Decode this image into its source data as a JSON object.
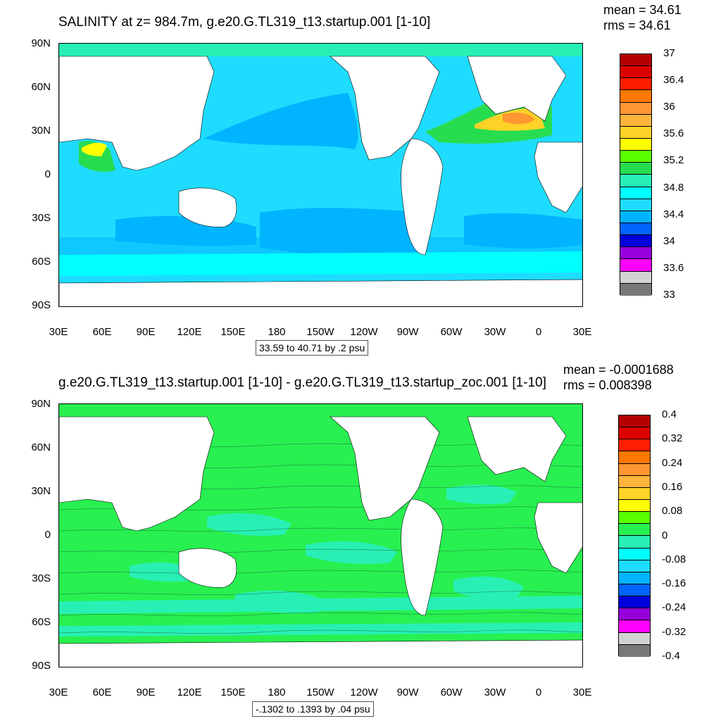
{
  "panels": [
    {
      "title": "SALINITY at z= 984.7m, g.e20.G.TL319_t13.startup.001 [1-10]",
      "mean_label": "mean = 34.61",
      "rms_label": "rms = 34.61",
      "info": "33.59 to 40.71 by .2 psu",
      "colorbar": {
        "colors": [
          "#b40000",
          "#dc0000",
          "#ff1e00",
          "#ff7800",
          "#ff9632",
          "#ffb43c",
          "#ffd228",
          "#ffff00",
          "#5aff00",
          "#28dc50",
          "#28f0b4",
          "#00ffff",
          "#1edcff",
          "#00b4ff",
          "#0064ff",
          "#0000dc",
          "#9600dc",
          "#ff00ff",
          "#d2d2d2",
          "#787878"
        ],
        "labels": [
          "37",
          "36.4",
          "36",
          "35.6",
          "35.2",
          "34.8",
          "34.4",
          "34",
          "33.6",
          "33"
        ]
      }
    },
    {
      "title": "g.e20.G.TL319_t13.startup.001 [1-10] - g.e20.G.TL319_t13.startup_zoc.001 [1-10]",
      "mean_label": "mean = -0.0001688",
      "rms_label": "rms = 0.008398",
      "info": "-.1302 to .1393 by .04 psu",
      "colorbar": {
        "colors": [
          "#b40000",
          "#dc0000",
          "#ff1e00",
          "#ff7800",
          "#ff9632",
          "#ffb43c",
          "#ffd228",
          "#ffff00",
          "#5aff00",
          "#28f050",
          "#28f0b4",
          "#00ffff",
          "#1edcff",
          "#00b4ff",
          "#0064ff",
          "#0000dc",
          "#9600dc",
          "#ff00ff",
          "#d2d2d2",
          "#787878"
        ],
        "labels": [
          "0.4",
          "0.32",
          "0.24",
          "0.16",
          "0.08",
          "0",
          "-0.08",
          "-0.16",
          "-0.24",
          "-0.32",
          "-0.4"
        ]
      }
    }
  ],
  "axes": {
    "lat_labels": [
      "90N",
      "60N",
      "30N",
      "0",
      "30S",
      "60S",
      "90S"
    ],
    "lon_labels": [
      "30E",
      "60E",
      "90E",
      "120E",
      "150E",
      "180",
      "150W",
      "120W",
      "90W",
      "60W",
      "30W",
      "0",
      "30E"
    ]
  },
  "chart_data": [
    {
      "type": "heatmap",
      "title": "SALINITY at z= 984.7m, g.e20.G.TL319_t13.startup.001 [1-10]",
      "subtitle": "mean = 34.61, rms = 34.61",
      "variable": "salinity",
      "units": "psu",
      "x_range": [
        "30E",
        "30E"
      ],
      "y_range": [
        "90S",
        "90N"
      ],
      "contour_levels": [
        33,
        33.2,
        33.4,
        33.6,
        33.8,
        34,
        34.2,
        34.4,
        34.6,
        34.8,
        35,
        35.2,
        35.4,
        35.6,
        35.8,
        36,
        36.2,
        36.4,
        36.6,
        36.8,
        37
      ],
      "field_stats": {
        "min": 33.59,
        "max": 40.71,
        "interval": 0.2,
        "mean": 34.61,
        "rms": 34.61
      }
    },
    {
      "type": "heatmap",
      "title": "g.e20.G.TL319_t13.startup.001 [1-10] - g.e20.G.TL319_t13.startup_zoc.001 [1-10]",
      "subtitle": "mean = -0.0001688, rms = 0.008398",
      "variable": "salinity difference",
      "units": "psu",
      "x_range": [
        "30E",
        "30E"
      ],
      "y_range": [
        "90S",
        "90N"
      ],
      "contour_levels": [
        -0.4,
        -0.36,
        -0.32,
        -0.28,
        -0.24,
        -0.2,
        -0.16,
        -0.12,
        -0.08,
        -0.04,
        0,
        0.04,
        0.08,
        0.12,
        0.16,
        0.2,
        0.24,
        0.28,
        0.32,
        0.36,
        0.4
      ],
      "field_stats": {
        "min": -0.1302,
        "max": 0.1393,
        "interval": 0.04,
        "mean": -0.0001688,
        "rms": 0.008398
      }
    }
  ]
}
